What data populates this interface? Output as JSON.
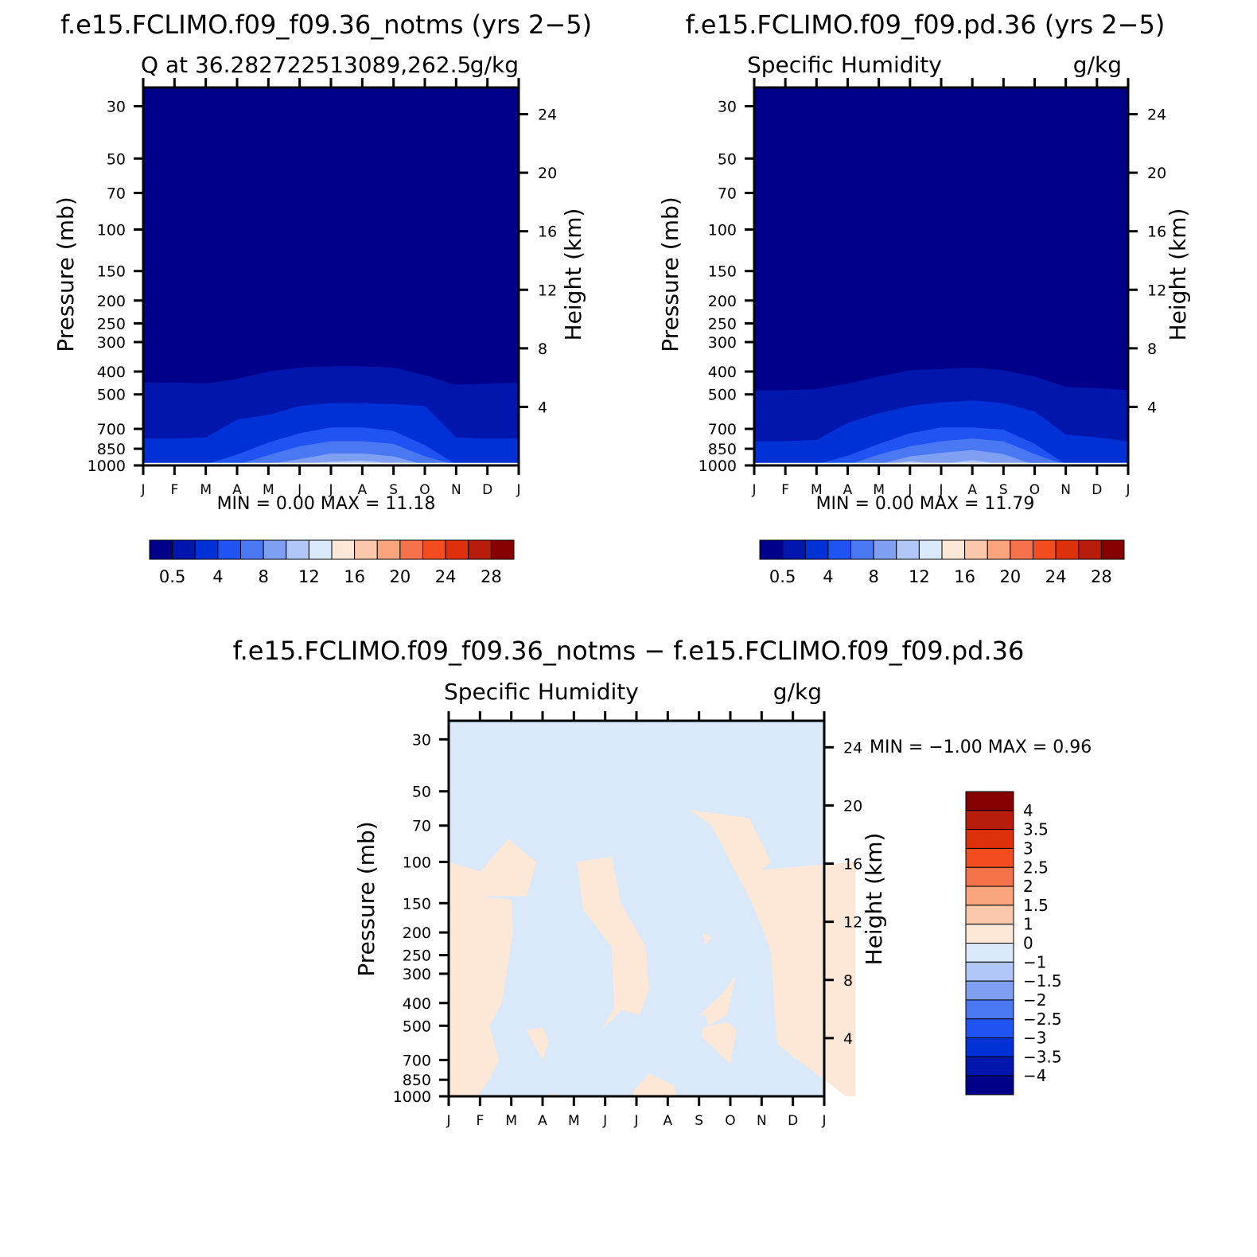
{
  "colors": {
    "seq_palette": [
      "#00008a",
      "#0016ac",
      "#0031d6",
      "#1f53f2",
      "#4a78f3",
      "#7f9ff2",
      "#b0c7f7",
      "#d9e9fa",
      "#fde7d6",
      "#fbc8ac",
      "#f9a47c",
      "#f6724a",
      "#f24c1f",
      "#de300a",
      "#b81c0a",
      "#860000"
    ],
    "diff_palette": [
      "#00008a",
      "#0016ac",
      "#0031d6",
      "#1f53f2",
      "#4a78f3",
      "#7f9ff2",
      "#b0c7f7",
      "#d9e9fa",
      "#fde7d6",
      "#fbc8ac",
      "#f9a47c",
      "#f6724a",
      "#f24c1f",
      "#de300a",
      "#b81c0a",
      "#860000"
    ],
    "sep": "#ffffff"
  },
  "panel1": {
    "title": "f.e15.FCLIMO.f09_f09.36_notms (yrs 2−5)",
    "left_label": "Q at 36.282722513089,262.5",
    "right_label": "g/kg",
    "minmax": "MIN =     0.00  MAX =    11.18",
    "ylabel": "Pressure (mb)",
    "y2label": "Height (km)"
  },
  "panel2": {
    "title": "f.e15.FCLIMO.f09_f09.pd.36 (yrs 2−5)",
    "left_label": "Specific Humidity",
    "right_label": "g/kg",
    "minmax": "MIN =     0.00  MAX =    11.79",
    "ylabel": "Pressure (mb)",
    "y2label": "Height (km)"
  },
  "panel3": {
    "title": "f.e15.FCLIMO.f09_f09.36_notms − f.e15.FCLIMO.f09_f09.pd.36",
    "left_label": "Specific Humidity",
    "right_label": "g/kg",
    "minmax": "MIN =   −1.00  MAX =     0.96",
    "ylabel": "Pressure (mb)",
    "y2label": "Height (km)"
  },
  "chart_data": [
    {
      "type": "contour",
      "title": "f.e15.FCLIMO.f09_f09.36_notms (yrs 2−5)",
      "x_ticks": [
        "J",
        "F",
        "M",
        "A",
        "M",
        "J",
        "J",
        "A",
        "S",
        "O",
        "N",
        "D",
        "J"
      ],
      "y_ticks": [
        "30",
        "50",
        "70",
        "100",
        "150",
        "200",
        "250",
        "300",
        "400",
        "500",
        "700",
        "850",
        "1000"
      ],
      "y_tick_values": [
        30,
        50,
        70,
        100,
        150,
        200,
        250,
        300,
        400,
        500,
        700,
        850,
        1000
      ],
      "y2_ticks": [
        "24",
        "20",
        "16",
        "12",
        "8",
        "4"
      ],
      "y2_tick_values": [
        24,
        20,
        16,
        12,
        8,
        4
      ],
      "ylim": [
        1000,
        25
      ],
      "colorbar_labels": [
        "0.5",
        "4",
        "8",
        "12",
        "16",
        "20",
        "24",
        "28"
      ],
      "min": 0.0,
      "max": 11.18,
      "contour_boundaries": [
        {
          "level": 0.5,
          "p": [
            445,
            445,
            450,
            430,
            400,
            385,
            380,
            380,
            385,
            415,
            455,
            450,
            445
          ]
        },
        {
          "level": 1.0,
          "p": [
            770,
            770,
            760,
            640,
            610,
            560,
            545,
            545,
            550,
            560,
            760,
            770,
            770
          ]
        },
        {
          "level": 2.0,
          "p": [
            990,
            990,
            990,
            900,
            800,
            730,
            690,
            690,
            715,
            820,
            990,
            990,
            990
          ]
        },
        {
          "level": 4.0,
          "p": [
            995,
            995,
            995,
            995,
            905,
            830,
            790,
            790,
            810,
            915,
            995,
            995,
            995
          ]
        },
        {
          "level": 6.0,
          "p": [
            998,
            998,
            998,
            998,
            990,
            940,
            890,
            890,
            915,
            995,
            998,
            998,
            998
          ]
        },
        {
          "level": 8.0,
          "p": [
            999,
            999,
            999,
            999,
            999,
            985,
            965,
            955,
            980,
            999,
            999,
            999,
            999
          ]
        }
      ]
    },
    {
      "type": "contour",
      "title": "f.e15.FCLIMO.f09_f09.pd.36 (yrs 2−5)",
      "x_ticks": [
        "J",
        "F",
        "M",
        "A",
        "M",
        "J",
        "J",
        "A",
        "S",
        "O",
        "N",
        "D",
        "J"
      ],
      "y_ticks": [
        "30",
        "50",
        "70",
        "100",
        "150",
        "200",
        "250",
        "300",
        "400",
        "500",
        "700",
        "850",
        "1000"
      ],
      "y_tick_values": [
        30,
        50,
        70,
        100,
        150,
        200,
        250,
        300,
        400,
        500,
        700,
        850,
        1000
      ],
      "y2_ticks": [
        "24",
        "20",
        "16",
        "12",
        "8",
        "4"
      ],
      "y2_tick_values": [
        24,
        20,
        16,
        12,
        8,
        4
      ],
      "ylim": [
        1000,
        25
      ],
      "colorbar_labels": [
        "0.5",
        "4",
        "8",
        "12",
        "16",
        "20",
        "24",
        "28"
      ],
      "min": 0.0,
      "max": 11.79,
      "contour_boundaries": [
        {
          "level": 0.5,
          "p": [
            480,
            480,
            475,
            450,
            420,
            395,
            390,
            385,
            395,
            420,
            465,
            470,
            480
          ]
        },
        {
          "level": 1.0,
          "p": [
            790,
            790,
            780,
            660,
            600,
            560,
            540,
            530,
            545,
            590,
            740,
            760,
            790
          ]
        },
        {
          "level": 2.0,
          "p": [
            990,
            990,
            990,
            910,
            810,
            730,
            690,
            690,
            705,
            810,
            990,
            990,
            990
          ]
        },
        {
          "level": 4.0,
          "p": [
            995,
            995,
            995,
            995,
            900,
            830,
            790,
            770,
            790,
            895,
            995,
            995,
            995
          ]
        },
        {
          "level": 6.0,
          "p": [
            998,
            998,
            998,
            998,
            990,
            915,
            885,
            860,
            895,
            995,
            998,
            998,
            998
          ]
        },
        {
          "level": 8.0,
          "p": [
            999,
            999,
            999,
            999,
            999,
            960,
            990,
            950,
            990,
            999,
            999,
            999,
            999
          ]
        }
      ]
    },
    {
      "type": "contour",
      "title": "f.e15.FCLIMO.f09_f09.36_notms − f.e15.FCLIMO.f09_f09.pd.36",
      "x_ticks": [
        "J",
        "F",
        "M",
        "A",
        "M",
        "J",
        "J",
        "A",
        "S",
        "O",
        "N",
        "D",
        "J"
      ],
      "y_ticks": [
        "30",
        "50",
        "70",
        "100",
        "150",
        "200",
        "250",
        "300",
        "400",
        "500",
        "700",
        "850",
        "1000"
      ],
      "y_tick_values": [
        30,
        50,
        70,
        100,
        150,
        200,
        250,
        300,
        400,
        500,
        700,
        850,
        1000
      ],
      "y2_ticks": [
        "24",
        "20",
        "16",
        "12",
        "8",
        "4"
      ],
      "y2_tick_values": [
        24,
        20,
        16,
        12,
        8,
        4
      ],
      "ylim": [
        1000,
        25
      ],
      "colorbar_labels": [
        "4",
        "3.5",
        "3",
        "2.5",
        "2",
        "1.5",
        "1",
        "0",
        "−1",
        "−1.5",
        "−2",
        "−2.5",
        "−3",
        "−3.5",
        "−4"
      ],
      "min": -1.0,
      "max": 0.96,
      "regions_positive": [
        [
          [
            0,
            100
          ],
          [
            1,
            110
          ],
          [
            1.9,
            80
          ],
          [
            2.8,
            100
          ],
          [
            2.5,
            140
          ],
          [
            1,
            140
          ],
          [
            2,
            145
          ],
          [
            2.05,
            200
          ],
          [
            1.7,
            400
          ],
          [
            1.3,
            500
          ],
          [
            1.6,
            700
          ],
          [
            1.3,
            850
          ],
          [
            0.9,
            1000
          ],
          [
            0,
            1000
          ]
        ],
        [
          [
            8.4,
            70
          ],
          [
            7.7,
            60
          ],
          [
            9.6,
            65
          ],
          [
            10.3,
            100
          ],
          [
            10,
            108
          ],
          [
            13,
            100
          ],
          [
            13,
            1000
          ],
          [
            12.7,
            1000
          ],
          [
            10.5,
            600
          ],
          [
            10.4,
            400
          ],
          [
            10.3,
            240
          ],
          [
            9.7,
            150
          ]
        ],
        [
          [
            4.1,
            100
          ],
          [
            5.2,
            95
          ],
          [
            5.5,
            150
          ],
          [
            6.3,
            230
          ],
          [
            6.4,
            350
          ],
          [
            6.1,
            450
          ],
          [
            5.5,
            430
          ],
          [
            4.9,
            520
          ],
          [
            5.1,
            460
          ],
          [
            5.3,
            420
          ],
          [
            5.2,
            230
          ],
          [
            4.3,
            160
          ]
        ],
        [
          [
            8.0,
            450
          ],
          [
            8.7,
            370
          ],
          [
            9.15,
            310
          ],
          [
            8.9,
            450
          ],
          [
            8.3,
            500
          ],
          [
            8.2,
            450
          ]
        ],
        [
          [
            8.1,
            510
          ],
          [
            8.9,
            480
          ],
          [
            9.2,
            520
          ],
          [
            9.0,
            730
          ],
          [
            8.1,
            560
          ]
        ],
        [
          [
            2.5,
            520
          ],
          [
            3.0,
            510
          ],
          [
            3.2,
            580
          ],
          [
            3.0,
            700
          ],
          [
            2.6,
            560
          ]
        ],
        [
          [
            5.9,
            950
          ],
          [
            6.4,
            800
          ],
          [
            7.2,
            900
          ],
          [
            7.3,
            1000
          ],
          [
            5.9,
            1000
          ]
        ],
        [
          [
            2.9,
            1000
          ],
          [
            3.3,
            980
          ],
          [
            4.2,
            1000
          ]
        ],
        [
          [
            8.1,
            200
          ],
          [
            8.4,
            210
          ],
          [
            8.2,
            225
          ]
        ]
      ]
    }
  ]
}
